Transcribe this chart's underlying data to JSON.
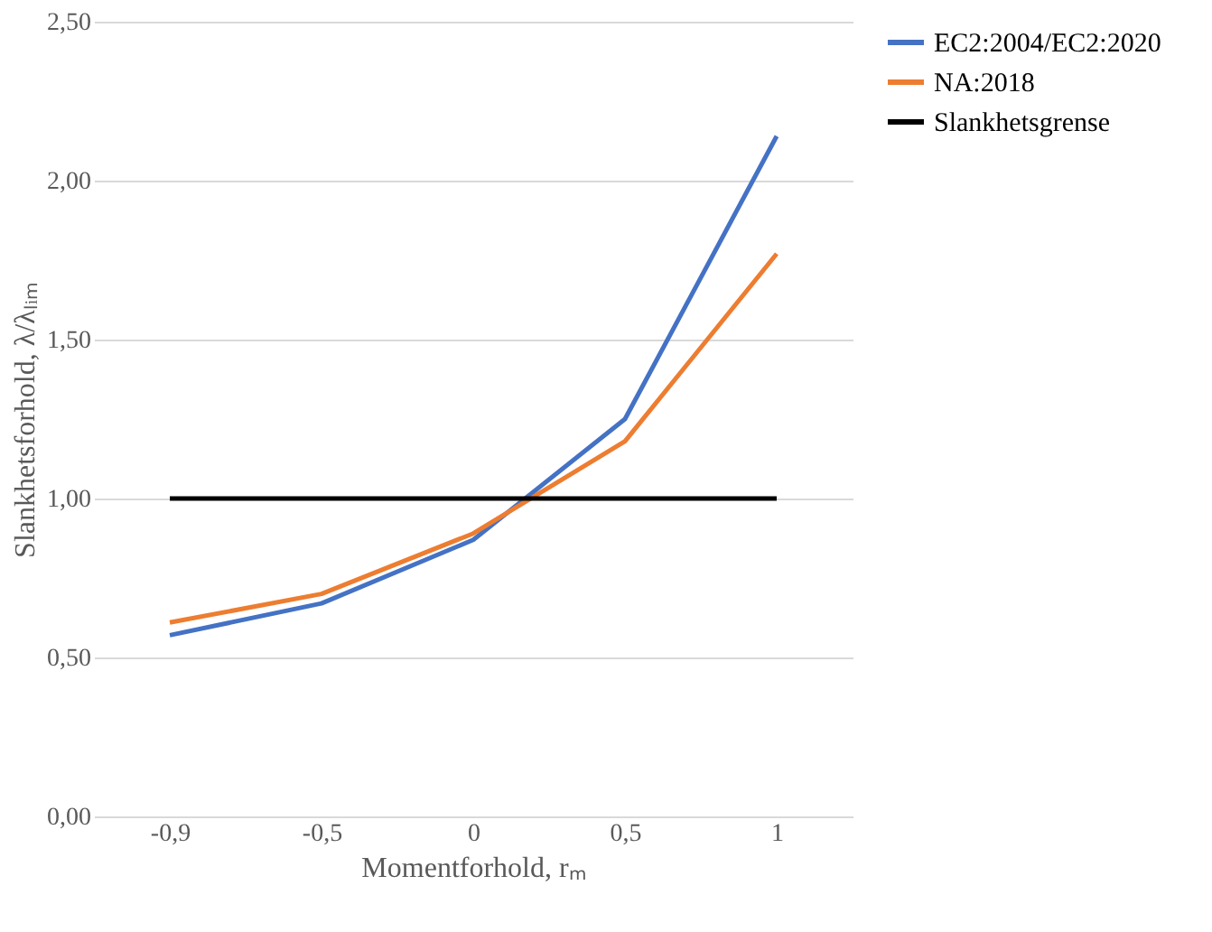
{
  "chart_data": {
    "type": "line",
    "xlabel": "Momentforhold, rₘ",
    "ylabel": "Slankhetsforhold, λ/λₗᵢₘ",
    "categories": [
      "-0,9",
      "-0,5",
      "0",
      "0,5",
      "1"
    ],
    "series": [
      {
        "name": "EC2:2004/EC2:2020",
        "color": "#4472c4",
        "values": [
          0.57,
          0.67,
          0.87,
          1.25,
          2.14
        ]
      },
      {
        "name": "NA:2018",
        "color": "#ed7d31",
        "values": [
          0.61,
          0.7,
          0.89,
          1.18,
          1.77
        ]
      },
      {
        "name": "Slankhetsgrense",
        "color": "#000000",
        "values": [
          1.0,
          1.0,
          1.0,
          1.0,
          1.0
        ]
      }
    ],
    "ylim": [
      0,
      2.5
    ],
    "yticks": [
      {
        "value": 0,
        "label": "0,00"
      },
      {
        "value": 0.5,
        "label": "0,50"
      },
      {
        "value": 1,
        "label": "1,00"
      },
      {
        "value": 1.5,
        "label": "1,50"
      },
      {
        "value": 2,
        "label": "2,00"
      },
      {
        "value": 2.5,
        "label": "2,50"
      }
    ],
    "grid": "y",
    "legend": "right",
    "marker": "none",
    "line_style": "solid"
  }
}
